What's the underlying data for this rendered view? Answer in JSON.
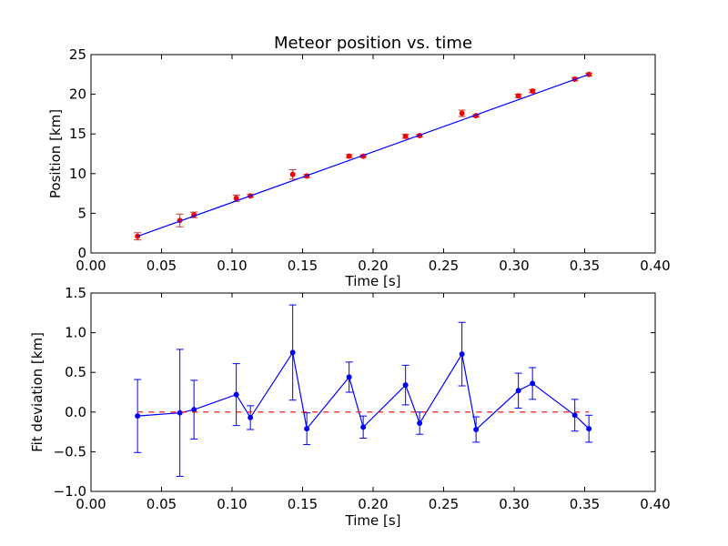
{
  "chart_data": [
    {
      "type": "scatter",
      "title": "Meteor position vs. time",
      "xlabel": "Time [s]",
      "ylabel": "Position [km]",
      "xlim": [
        0.0,
        0.4
      ],
      "ylim": [
        0,
        25
      ],
      "xticks": [
        "0.00",
        "0.05",
        "0.10",
        "0.15",
        "0.20",
        "0.25",
        "0.30",
        "0.35",
        "0.40"
      ],
      "yticks": [
        "0",
        "5",
        "10",
        "15",
        "20",
        "25"
      ],
      "grid": false,
      "series": [
        {
          "style": "points-with-errorbars",
          "color": "#ff0000",
          "errorbar_color": "#c0392b",
          "x": [
            0.033,
            0.063,
            0.073,
            0.103,
            0.113,
            0.143,
            0.153,
            0.183,
            0.193,
            0.223,
            0.233,
            0.263,
            0.273,
            0.303,
            0.313,
            0.343,
            0.353
          ],
          "y": [
            2.1,
            4.1,
            4.8,
            6.9,
            7.2,
            9.9,
            9.7,
            12.2,
            12.2,
            14.7,
            14.8,
            17.6,
            17.3,
            19.8,
            20.4,
            21.9,
            22.5
          ],
          "yerr": [
            0.45,
            0.8,
            0.35,
            0.4,
            0.15,
            0.6,
            0.2,
            0.2,
            0.15,
            0.25,
            0.15,
            0.4,
            0.15,
            0.2,
            0.2,
            0.2,
            0.17
          ]
        },
        {
          "style": "fit-line",
          "color": "#0000ff",
          "x": [
            0.033,
            0.353
          ],
          "y": [
            2.1,
            22.5
          ]
        }
      ]
    },
    {
      "type": "line",
      "title": "",
      "xlabel": "Time [s]",
      "ylabel": "Fit deviation [km]",
      "xlim": [
        0.0,
        0.4
      ],
      "ylim": [
        -1.0,
        1.5
      ],
      "xticks": [
        "0.00",
        "0.05",
        "0.10",
        "0.15",
        "0.20",
        "0.25",
        "0.30",
        "0.35",
        "0.40"
      ],
      "yticks": [
        "−1.0",
        "−0.5",
        "0.0",
        "0.5",
        "1.0",
        "1.5"
      ],
      "grid": false,
      "series": [
        {
          "style": "line-points-errorbars",
          "color": "#0000ff",
          "x": [
            0.033,
            0.063,
            0.073,
            0.103,
            0.113,
            0.143,
            0.153,
            0.183,
            0.193,
            0.223,
            0.233,
            0.263,
            0.273,
            0.303,
            0.313,
            0.343,
            0.353
          ],
          "y": [
            -0.05,
            -0.01,
            0.03,
            0.22,
            -0.07,
            0.75,
            -0.21,
            0.44,
            -0.19,
            0.34,
            -0.14,
            0.73,
            -0.22,
            0.27,
            0.36,
            -0.04,
            -0.21
          ],
          "yerr": [
            0.46,
            0.8,
            0.37,
            0.39,
            0.15,
            0.6,
            0.2,
            0.19,
            0.14,
            0.25,
            0.14,
            0.4,
            0.16,
            0.22,
            0.2,
            0.2,
            0.17
          ]
        },
        {
          "style": "dashed-zero",
          "color": "#ff0000",
          "x": [
            0.033,
            0.353
          ],
          "y": [
            0.0,
            0.0
          ]
        }
      ]
    }
  ]
}
